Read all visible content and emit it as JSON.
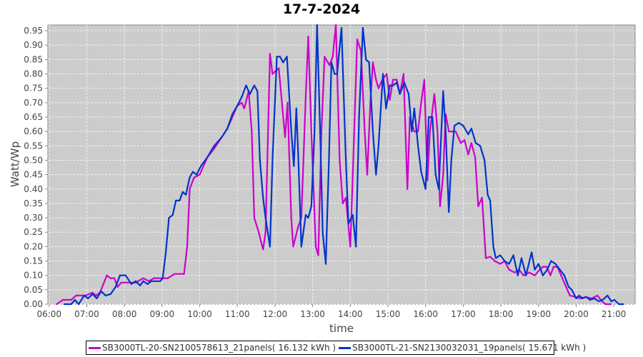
{
  "chart_data": {
    "type": "line",
    "title": "17-7-2024",
    "xlabel": "time",
    "ylabel": "Watt/Wp",
    "xlim": [
      "05:58",
      "21:34"
    ],
    "ylim": [
      0,
      0.97
    ],
    "grid": true,
    "legend_position": "bottom",
    "background": "#cccccc",
    "x_ticks": [
      "06:00",
      "07:00",
      "08:00",
      "09:00",
      "10:00",
      "11:00",
      "12:00",
      "13:00",
      "14:00",
      "15:00",
      "16:00",
      "17:00",
      "18:00",
      "19:00",
      "20:00",
      "21:00"
    ],
    "y_ticks": [
      "0.00",
      "0.05",
      "0.10",
      "0.15",
      "0.20",
      "0.25",
      "0.30",
      "0.35",
      "0.40",
      "0.45",
      "0.50",
      "0.55",
      "0.60",
      "0.65",
      "0.70",
      "0.75",
      "0.80",
      "0.85",
      "0.90",
      "0.95"
    ],
    "series": [
      {
        "name": "SB3000TL-20-SN2100578613_21panels( 16.132 kWh )",
        "color": "#cc00cc",
        "x": [
          "06:12",
          "06:22",
          "06:35",
          "06:43",
          "06:58",
          "07:09",
          "07:15",
          "07:21",
          "07:32",
          "07:38",
          "07:44",
          "07:49",
          "07:55",
          "08:18",
          "08:30",
          "08:39",
          "08:47",
          "09:00",
          "09:09",
          "09:20",
          "09:35",
          "09:40",
          "09:44",
          "09:51",
          "10:00",
          "10:12",
          "10:23",
          "10:35",
          "10:44",
          "10:52",
          "11:00",
          "11:07",
          "11:11",
          "11:18",
          "11:23",
          "11:27",
          "11:34",
          "11:41",
          "11:45",
          "11:52",
          "11:56",
          "12:06",
          "12:11",
          "12:16",
          "12:20",
          "12:26",
          "12:29",
          "12:37",
          "12:42",
          "12:49",
          "12:53",
          "12:58",
          "13:05",
          "13:09",
          "13:14",
          "13:19",
          "13:27",
          "13:32",
          "13:37",
          "13:43",
          "13:48",
          "13:53",
          "14:00",
          "14:04",
          "14:11",
          "14:17",
          "14:23",
          "14:27",
          "14:32",
          "14:36",
          "14:41",
          "14:45",
          "14:51",
          "14:58",
          "15:03",
          "15:08",
          "15:14",
          "15:19",
          "15:25",
          "15:31",
          "15:35",
          "15:42",
          "15:48",
          "15:53",
          "15:58",
          "16:03",
          "16:07",
          "16:14",
          "16:19",
          "16:23",
          "16:28",
          "16:32",
          "16:37",
          "16:48",
          "16:56",
          "17:02",
          "17:08",
          "17:13",
          "17:19",
          "17:24",
          "17:30",
          "17:36",
          "17:43",
          "17:50",
          "17:59",
          "18:06",
          "18:13",
          "18:22",
          "18:29",
          "18:36",
          "18:45",
          "18:54",
          "19:02",
          "19:07",
          "19:13",
          "19:19",
          "19:24",
          "19:30",
          "19:36",
          "19:42",
          "19:50",
          "19:59",
          "20:07",
          "20:15",
          "20:25",
          "20:34",
          "20:41",
          "20:47",
          "20:55"
        ],
        "values": [
          0.0,
          0.015,
          0.015,
          0.03,
          0.03,
          0.04,
          0.03,
          0.04,
          0.1,
          0.09,
          0.09,
          0.06,
          0.075,
          0.075,
          0.09,
          0.08,
          0.09,
          0.09,
          0.09,
          0.105,
          0.105,
          0.2,
          0.4,
          0.44,
          0.45,
          0.51,
          0.54,
          0.58,
          0.61,
          0.65,
          0.69,
          0.7,
          0.68,
          0.74,
          0.6,
          0.3,
          0.25,
          0.19,
          0.25,
          0.87,
          0.8,
          0.82,
          0.7,
          0.58,
          0.7,
          0.3,
          0.2,
          0.27,
          0.3,
          0.72,
          0.93,
          0.6,
          0.2,
          0.17,
          0.6,
          0.86,
          0.83,
          0.86,
          0.97,
          0.5,
          0.35,
          0.37,
          0.2,
          0.45,
          0.92,
          0.88,
          0.6,
          0.45,
          0.7,
          0.84,
          0.78,
          0.75,
          0.78,
          0.8,
          0.71,
          0.78,
          0.78,
          0.73,
          0.8,
          0.4,
          0.65,
          0.6,
          0.6,
          0.7,
          0.78,
          0.43,
          0.6,
          0.73,
          0.6,
          0.34,
          0.45,
          0.66,
          0.6,
          0.6,
          0.56,
          0.57,
          0.52,
          0.56,
          0.51,
          0.34,
          0.37,
          0.16,
          0.165,
          0.15,
          0.14,
          0.15,
          0.12,
          0.11,
          0.12,
          0.1,
          0.11,
          0.1,
          0.12,
          0.13,
          0.13,
          0.1,
          0.13,
          0.13,
          0.1,
          0.07,
          0.03,
          0.025,
          0.02,
          0.025,
          0.02,
          0.03,
          0.01,
          0.0,
          0.0
        ]
      },
      {
        "name": "SB3000TL-21-SN2130032031_19panels( 15.671 kWh )",
        "color": "#0033cc",
        "x": [
          "06:24",
          "06:35",
          "06:41",
          "06:47",
          "06:56",
          "07:02",
          "07:09",
          "07:16",
          "07:23",
          "07:30",
          "07:38",
          "07:46",
          "07:53",
          "08:02",
          "08:11",
          "08:18",
          "08:25",
          "08:30",
          "08:37",
          "08:43",
          "08:57",
          "09:01",
          "09:06",
          "09:11",
          "09:17",
          "09:22",
          "09:28",
          "09:33",
          "09:38",
          "09:44",
          "09:49",
          "09:55",
          "10:02",
          "10:12",
          "10:23",
          "10:35",
          "10:44",
          "10:52",
          "11:00",
          "11:07",
          "11:14",
          "11:20",
          "11:27",
          "11:32",
          "11:36",
          "11:41",
          "11:45",
          "11:52",
          "11:56",
          "12:03",
          "12:08",
          "12:13",
          "12:19",
          "12:26",
          "12:30",
          "12:34",
          "12:37",
          "12:42",
          "12:49",
          "12:53",
          "12:58",
          "13:03",
          "13:07",
          "13:12",
          "13:16",
          "13:21",
          "13:26",
          "13:30",
          "13:35",
          "13:39",
          "13:46",
          "13:53",
          "13:57",
          "14:04",
          "14:09",
          "14:14",
          "14:20",
          "14:25",
          "14:30",
          "14:36",
          "14:41",
          "14:45",
          "14:52",
          "14:57",
          "15:03",
          "15:08",
          "15:14",
          "15:19",
          "15:26",
          "15:33",
          "15:38",
          "15:42",
          "15:48",
          "15:53",
          "16:00",
          "16:05",
          "16:11",
          "16:16",
          "16:21",
          "16:28",
          "16:32",
          "16:37",
          "16:41",
          "16:46",
          "16:53",
          "17:00",
          "17:08",
          "17:13",
          "17:20",
          "17:27",
          "17:34",
          "17:39",
          "17:43",
          "17:48",
          "17:52",
          "17:59",
          "18:06",
          "18:13",
          "18:20",
          "18:27",
          "18:33",
          "18:40",
          "18:49",
          "18:54",
          "19:00",
          "19:07",
          "19:14",
          "19:20",
          "19:27",
          "19:34",
          "19:41",
          "19:48",
          "19:53",
          "20:00",
          "20:05",
          "20:10",
          "20:16",
          "20:22",
          "20:29",
          "20:36",
          "20:42",
          "20:50",
          "20:56",
          "21:01",
          "21:08",
          "21:15"
        ],
        "values": [
          0.0,
          0.0,
          0.015,
          0.0,
          0.03,
          0.02,
          0.035,
          0.02,
          0.045,
          0.03,
          0.035,
          0.06,
          0.1,
          0.1,
          0.07,
          0.08,
          0.065,
          0.08,
          0.07,
          0.08,
          0.08,
          0.09,
          0.18,
          0.3,
          0.31,
          0.36,
          0.36,
          0.39,
          0.38,
          0.44,
          0.46,
          0.45,
          0.48,
          0.51,
          0.55,
          0.58,
          0.61,
          0.66,
          0.69,
          0.72,
          0.76,
          0.73,
          0.76,
          0.74,
          0.5,
          0.37,
          0.3,
          0.2,
          0.5,
          0.86,
          0.86,
          0.84,
          0.86,
          0.6,
          0.48,
          0.68,
          0.52,
          0.2,
          0.31,
          0.3,
          0.34,
          0.6,
          0.97,
          0.6,
          0.25,
          0.14,
          0.5,
          0.84,
          0.8,
          0.8,
          0.96,
          0.5,
          0.28,
          0.31,
          0.2,
          0.65,
          0.96,
          0.85,
          0.84,
          0.6,
          0.45,
          0.55,
          0.8,
          0.68,
          0.76,
          0.76,
          0.77,
          0.73,
          0.77,
          0.73,
          0.6,
          0.68,
          0.55,
          0.46,
          0.4,
          0.65,
          0.65,
          0.45,
          0.4,
          0.74,
          0.6,
          0.32,
          0.5,
          0.62,
          0.63,
          0.62,
          0.59,
          0.61,
          0.56,
          0.55,
          0.5,
          0.38,
          0.36,
          0.2,
          0.16,
          0.17,
          0.15,
          0.14,
          0.17,
          0.1,
          0.16,
          0.1,
          0.18,
          0.12,
          0.14,
          0.1,
          0.12,
          0.15,
          0.14,
          0.12,
          0.1,
          0.06,
          0.05,
          0.02,
          0.03,
          0.02,
          0.025,
          0.015,
          0.02,
          0.01,
          0.015,
          0.03,
          0.01,
          0.015,
          0.0,
          0.0
        ]
      }
    ]
  }
}
